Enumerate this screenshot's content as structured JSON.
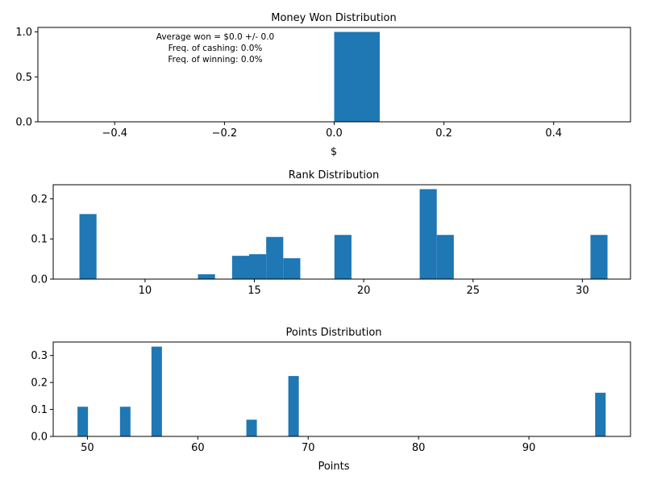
{
  "colors": {
    "bar": "#1f77b4",
    "axis": "#000000",
    "background": "#ffffff"
  },
  "chart_data": [
    {
      "type": "bar",
      "title": "Money Won Distribution",
      "xlabel": "$",
      "ylabel": "",
      "xlim": [
        -0.54,
        0.54
      ],
      "ylim": [
        0,
        1.05
      ],
      "grid": false,
      "xticks": [
        -0.4,
        -0.2,
        0.0,
        0.2,
        0.4
      ],
      "xtick_labels": [
        "−0.4",
        "−0.2",
        "0.0",
        "0.2",
        "0.4"
      ],
      "yticks": [
        0.0,
        0.5,
        1.0
      ],
      "ytick_labels": [
        "0.0",
        "0.5",
        "1.0"
      ],
      "bins": [
        {
          "x0": 0.0,
          "x1": 0.083,
          "value": 1.0
        }
      ],
      "annotations": [
        "Average won = $0.0 +/- 0.0",
        "Freq. of cashing: 0.0%",
        "Freq. of winning: 0.0%"
      ]
    },
    {
      "type": "bar",
      "title": "Rank Distribution",
      "xlabel": "",
      "ylabel": "",
      "xlim": [
        5.8,
        32.2
      ],
      "ylim": [
        0,
        0.235
      ],
      "grid": false,
      "xticks": [
        10,
        15,
        20,
        25,
        30
      ],
      "xtick_labels": [
        "10",
        "15",
        "20",
        "25",
        "30"
      ],
      "yticks": [
        0.0,
        0.1,
        0.2
      ],
      "ytick_labels": [
        "0.0",
        "0.1",
        "0.2"
      ],
      "bins": [
        {
          "x0": 7.0,
          "x1": 7.78,
          "value": 0.162
        },
        {
          "x0": 12.42,
          "x1": 13.2,
          "value": 0.012
        },
        {
          "x0": 13.98,
          "x1": 14.76,
          "value": 0.058
        },
        {
          "x0": 14.76,
          "x1": 15.54,
          "value": 0.062
        },
        {
          "x0": 15.54,
          "x1": 16.32,
          "value": 0.105
        },
        {
          "x0": 16.32,
          "x1": 17.1,
          "value": 0.052
        },
        {
          "x0": 18.66,
          "x1": 19.44,
          "value": 0.11
        },
        {
          "x0": 22.56,
          "x1": 23.34,
          "value": 0.224
        },
        {
          "x0": 23.34,
          "x1": 24.12,
          "value": 0.11
        },
        {
          "x0": 30.37,
          "x1": 31.15,
          "value": 0.11
        }
      ]
    },
    {
      "type": "bar",
      "title": "Points Distribution",
      "xlabel": "Points",
      "ylabel": "",
      "xlim": [
        46.9,
        99.2
      ],
      "ylim": [
        0,
        0.35
      ],
      "grid": false,
      "xticks": [
        50,
        60,
        70,
        80,
        90
      ],
      "xtick_labels": [
        "50",
        "60",
        "70",
        "80",
        "90"
      ],
      "yticks": [
        0.0,
        0.1,
        0.2,
        0.3
      ],
      "ytick_labels": [
        "0.0",
        "0.1",
        "0.2",
        "0.3"
      ],
      "bins": [
        {
          "x0": 49.1,
          "x1": 50.05,
          "value": 0.11
        },
        {
          "x0": 52.95,
          "x1": 53.9,
          "value": 0.11
        },
        {
          "x0": 55.8,
          "x1": 56.75,
          "value": 0.333
        },
        {
          "x0": 64.4,
          "x1": 65.35,
          "value": 0.062
        },
        {
          "x0": 68.2,
          "x1": 69.15,
          "value": 0.224
        },
        {
          "x0": 96.0,
          "x1": 96.95,
          "value": 0.162
        }
      ]
    }
  ]
}
